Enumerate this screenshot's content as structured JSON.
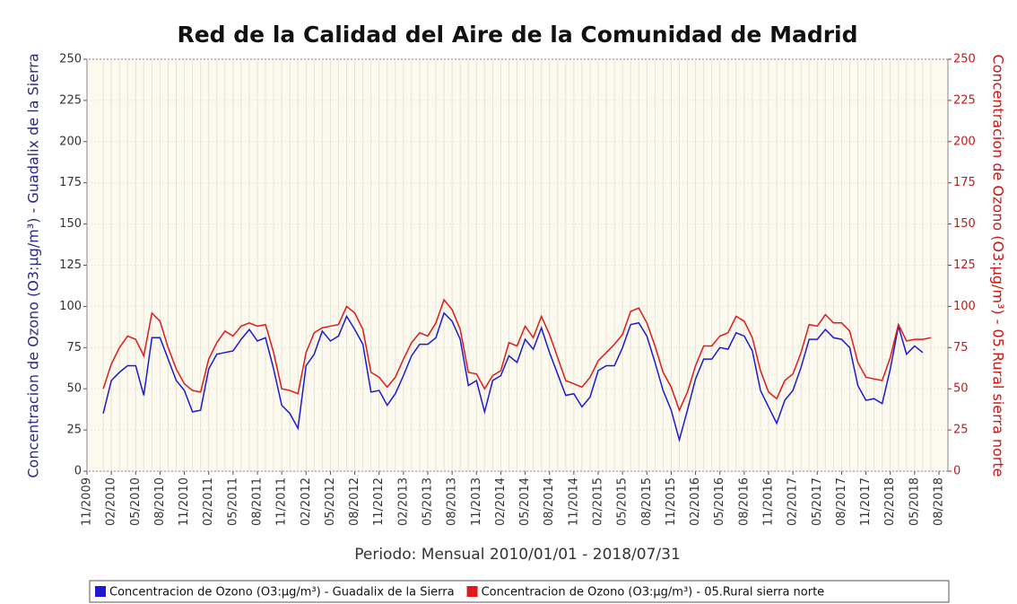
{
  "chart_data": {
    "type": "line",
    "title": "Red de la Calidad del Aire de la Comunidad de Madrid",
    "x_label": "Periodo: Mensual 2010/01/01 - 2018/07/31",
    "y_label": "Concentracion de Ozono (O3:µg/m³) - Guadalix de la Sierra",
    "y2_label": "Concentracion de Ozono (O3:µg/m³) - 05.Rural sierra norte",
    "x": [
      "01/2010",
      "02/2010",
      "03/2010",
      "04/2010",
      "05/2010",
      "06/2010",
      "07/2010",
      "08/2010",
      "09/2010",
      "10/2010",
      "11/2010",
      "12/2010",
      "01/2011",
      "02/2011",
      "03/2011",
      "04/2011",
      "05/2011",
      "06/2011",
      "07/2011",
      "08/2011",
      "09/2011",
      "10/2011",
      "11/2011",
      "12/2011",
      "01/2012",
      "02/2012",
      "03/2012",
      "04/2012",
      "05/2012",
      "06/2012",
      "07/2012",
      "08/2012",
      "09/2012",
      "10/2012",
      "11/2012",
      "12/2012",
      "01/2013",
      "02/2013",
      "03/2013",
      "04/2013",
      "05/2013",
      "06/2013",
      "07/2013",
      "08/2013",
      "09/2013",
      "10/2013",
      "11/2013",
      "12/2013",
      "01/2014",
      "02/2014",
      "03/2014",
      "04/2014",
      "05/2014",
      "06/2014",
      "07/2014",
      "08/2014",
      "09/2014",
      "10/2014",
      "11/2014",
      "12/2014",
      "01/2015",
      "02/2015",
      "03/2015",
      "04/2015",
      "05/2015",
      "06/2015",
      "07/2015",
      "08/2015",
      "09/2015",
      "10/2015",
      "11/2015",
      "12/2015",
      "01/2016",
      "02/2016",
      "03/2016",
      "04/2016",
      "05/2016",
      "06/2016",
      "07/2016",
      "08/2016",
      "09/2016",
      "10/2016",
      "11/2016",
      "12/2016",
      "01/2017",
      "02/2017",
      "03/2017",
      "04/2017",
      "05/2017",
      "06/2017",
      "07/2017",
      "08/2017",
      "09/2017",
      "10/2017",
      "11/2017",
      "12/2017",
      "01/2018",
      "02/2018",
      "03/2018",
      "04/2018",
      "05/2018",
      "06/2018",
      "07/2018"
    ],
    "series": [
      {
        "name": "Concentracion de Ozono (O3:µg/m³) - Guadalix de la Sierra",
        "color": "#1a1ad6",
        "values": [
          35,
          55,
          60,
          64,
          64,
          46,
          81,
          81,
          68,
          55,
          49,
          36,
          37,
          62,
          71,
          72,
          73,
          80,
          86,
          79,
          81,
          62,
          40,
          35,
          26,
          64,
          71,
          85,
          79,
          82,
          94,
          86,
          77,
          48,
          49,
          40,
          47,
          58,
          70,
          77,
          77,
          81,
          96,
          91,
          80,
          52,
          55,
          36,
          55,
          58,
          70,
          66,
          80,
          74,
          87,
          72,
          59,
          46,
          47,
          39,
          45,
          61,
          64,
          64,
          75,
          89,
          90,
          82,
          66,
          49,
          37,
          19,
          37,
          56,
          68,
          68,
          75,
          74,
          84,
          82,
          73,
          49,
          39,
          29,
          43,
          49,
          63,
          80,
          80,
          86,
          81,
          80,
          75,
          52,
          43,
          44,
          41,
          62,
          88,
          71,
          76,
          72,
          null
        ]
      },
      {
        "name": "Concentracion de Ozono (O3:µg/m³) - 05.Rural sierra norte",
        "color": "#e01a1a",
        "axis": "y2",
        "values": [
          50,
          65,
          75,
          82,
          80,
          70,
          96,
          91,
          75,
          62,
          53,
          49,
          48,
          68,
          78,
          85,
          82,
          88,
          90,
          88,
          89,
          72,
          50,
          49,
          47,
          72,
          84,
          87,
          88,
          89,
          100,
          96,
          86,
          60,
          57,
          51,
          57,
          68,
          78,
          84,
          82,
          90,
          104,
          98,
          86,
          60,
          59,
          50,
          58,
          61,
          78,
          76,
          88,
          81,
          94,
          83,
          69,
          55,
          53,
          51,
          57,
          67,
          72,
          77,
          83,
          97,
          99,
          90,
          76,
          60,
          51,
          37,
          48,
          64,
          76,
          76,
          82,
          84,
          94,
          91,
          81,
          61,
          48,
          44,
          55,
          59,
          72,
          89,
          88,
          95,
          90,
          90,
          85,
          66,
          57,
          56,
          55,
          69,
          89,
          79,
          80,
          80,
          81
        ]
      }
    ],
    "xlim": [
      "11/2009",
      "08/2018"
    ],
    "xticks": [
      "11/2009",
      "02/2010",
      "05/2010",
      "08/2010",
      "11/2010",
      "02/2011",
      "05/2011",
      "08/2011",
      "11/2011",
      "02/2012",
      "05/2012",
      "08/2012",
      "11/2012",
      "02/2013",
      "05/2013",
      "08/2013",
      "11/2013",
      "02/2014",
      "05/2014",
      "08/2014",
      "11/2014",
      "02/2015",
      "05/2015",
      "08/2015",
      "11/2015",
      "02/2016",
      "05/2016",
      "08/2016",
      "11/2016",
      "02/2017",
      "05/2017",
      "08/2017",
      "11/2017",
      "02/2018",
      "05/2018",
      "08/2018"
    ],
    "ylim": [
      0,
      250
    ],
    "yticks": [
      0,
      25,
      50,
      75,
      100,
      125,
      150,
      175,
      200,
      225,
      250
    ],
    "y2lim": [
      0,
      250
    ],
    "y2ticks": [
      0,
      25,
      50,
      75,
      100,
      125,
      150,
      175,
      200,
      225,
      250
    ],
    "grid": true,
    "legend": "bottom"
  }
}
